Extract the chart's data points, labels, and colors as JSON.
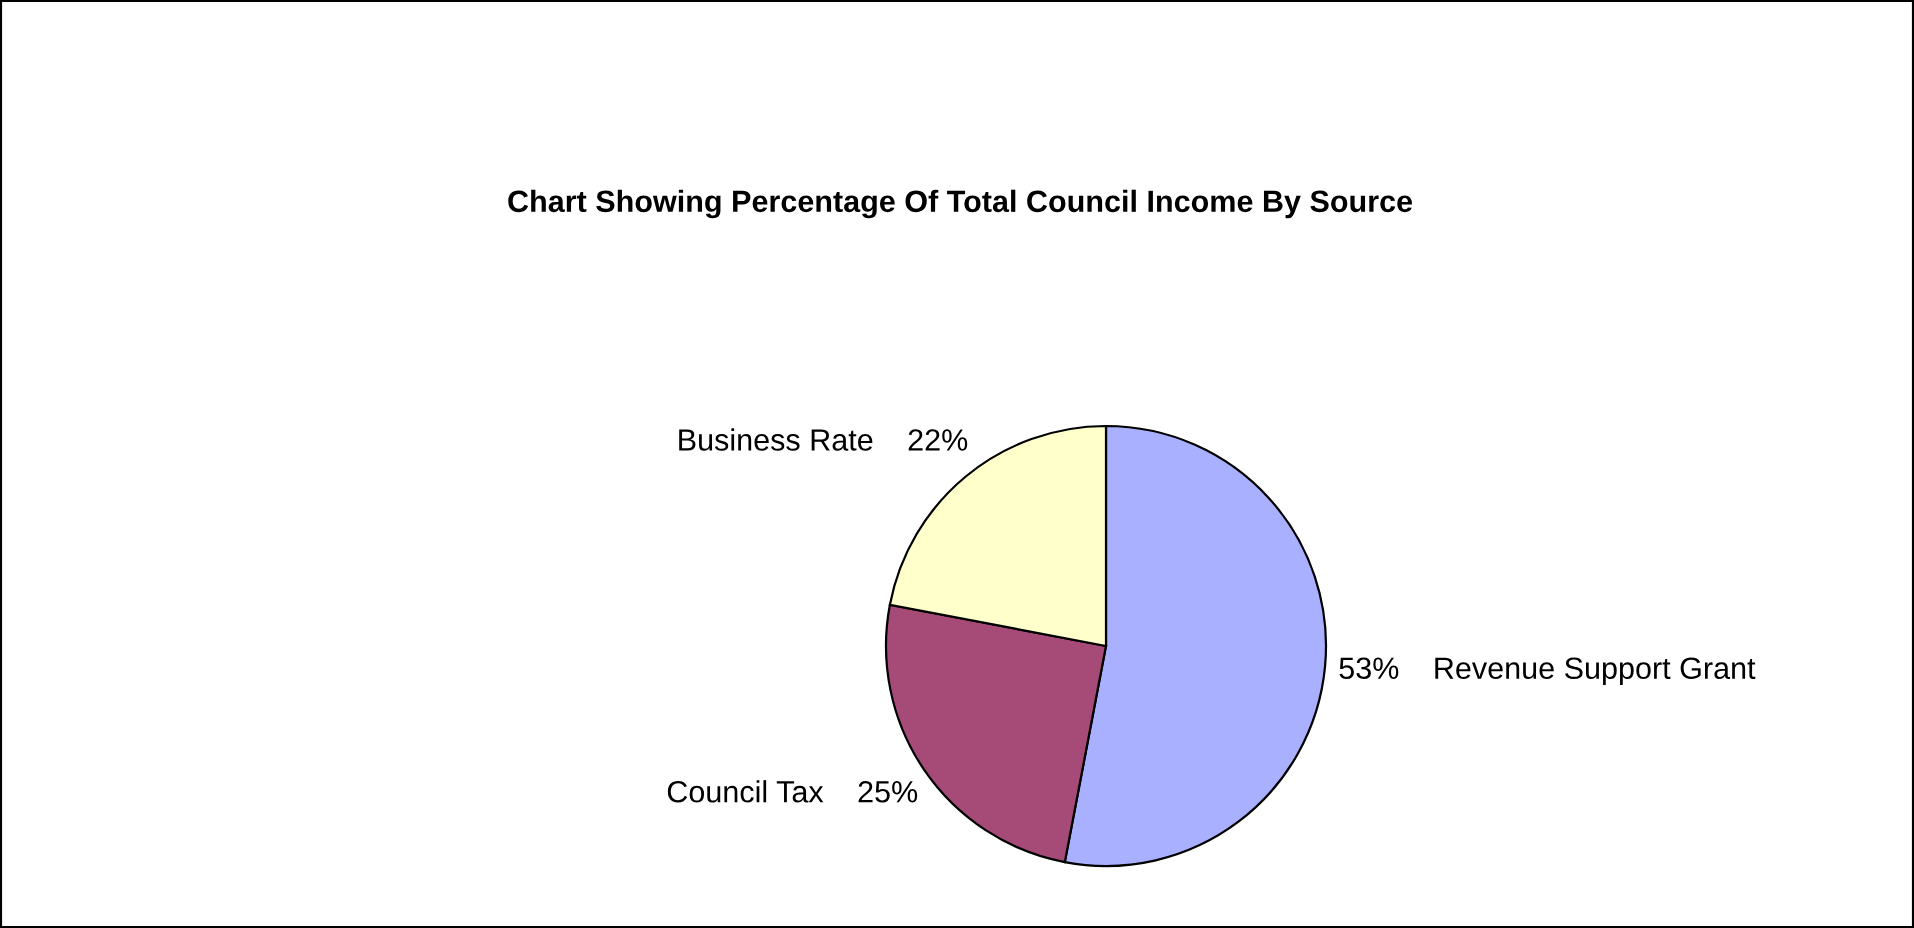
{
  "chart_data": {
    "type": "pie",
    "title": "Chart Showing Percentage Of Total Council Income By Source",
    "categories": [
      "Revenue Support Grant",
      "Council Tax",
      "Business Rate"
    ],
    "values": [
      53,
      25,
      22
    ],
    "colors": [
      "#a9b0ff",
      "#a64a78",
      "#ffffcc"
    ],
    "value_labels": [
      "53%",
      "25%",
      "22%"
    ],
    "legend": false
  }
}
